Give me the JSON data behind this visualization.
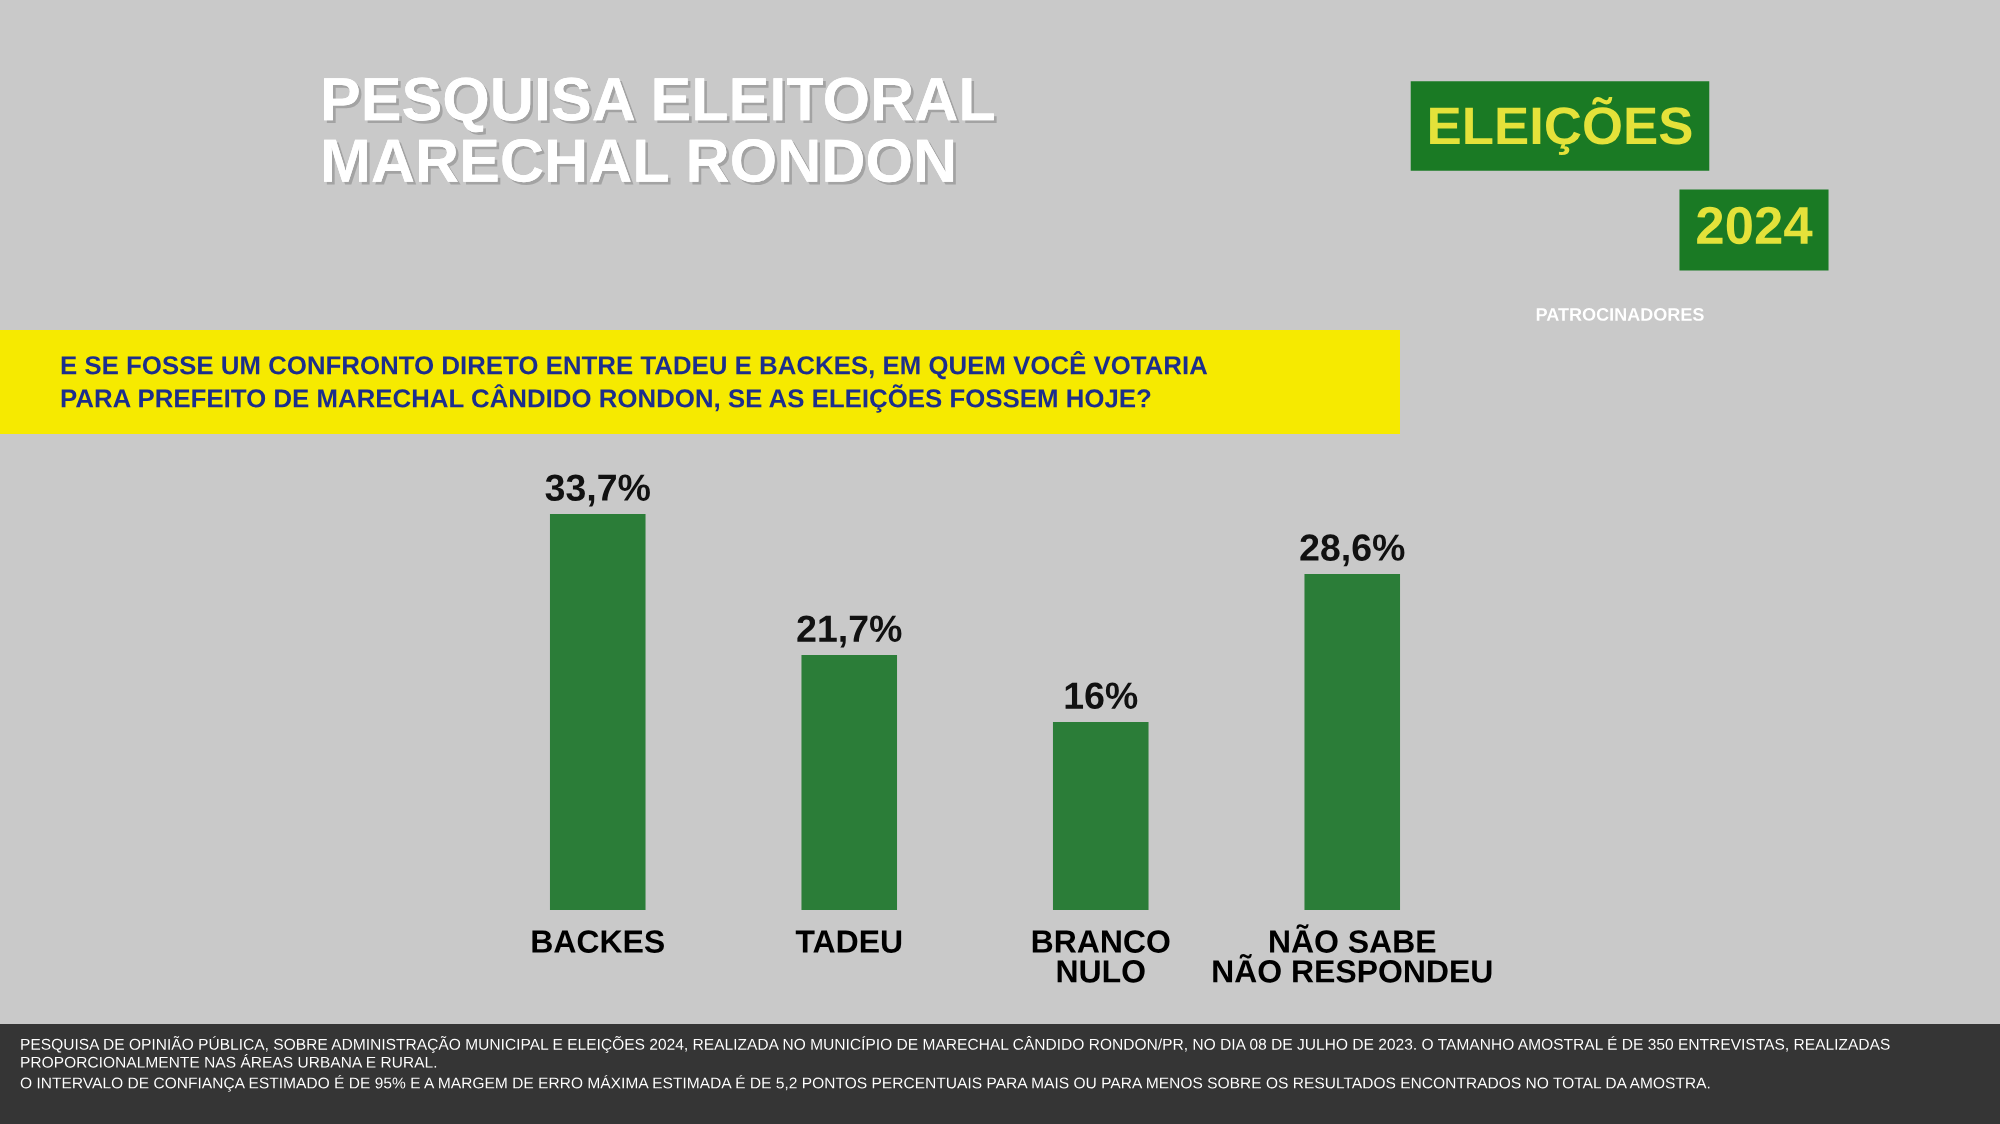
{
  "chart_data": {
    "type": "bar",
    "title": "PESQUISA ELEITORAL\nMARECHAL RONDON",
    "subtitle": "E SE FOSSE UM CONFRONTO DIRETO ENTRE TADEU E BACKES, EM QUEM VOCÊ VOTARIA\nPARA PREFEITO DE MARECHAL CÂNDIDO RONDON, SE AS ELEIÇÕES FOSSEM HOJE?",
    "categories": [
      "BACKES",
      "TADEU",
      "BRANCO\nNULO",
      "NÃO SABE\nNÃO RESPONDEU"
    ],
    "values": [
      33.7,
      21.7,
      16,
      28.6
    ],
    "value_labels": [
      "33,7%",
      "21,7%",
      "16%",
      "28,6%"
    ],
    "color": "#2b7d38",
    "tick_labels": "x",
    "annotations": [
      "ELEIÇÕES",
      "2024",
      "PATROCINADORES",
      "PESQUISA DE OPINIÃO PÚBLICA, SOBRE ADMINISTRAÇÃO MUNICIPAL E ELEIÇÕES 2024, REALIZADA NO MUNICÍPIO DE MARECHAL CÂNDIDO RONDON/PR, NO DIA 08 DE JULHO DE 2023. O TAMANHO AMOSTRAL É DE 350 ENTREVISTAS, REALIZADAS PROPORCIONALMENTE NAS ÁREAS URBANA E RURAL.",
      "O INTERVALO DE CONFIANÇA ESTIMADO É DE 95% E A MARGEM DE ERRO MÁXIMA ESTIMADA É DE 5,2 PONTOS PERCENTUAIS PARA MAIS OU PARA MENOS SOBRE OS RESULTADOS ENCONTRADOS NO TOTAL DA AMOSTRA."
    ]
  }
}
